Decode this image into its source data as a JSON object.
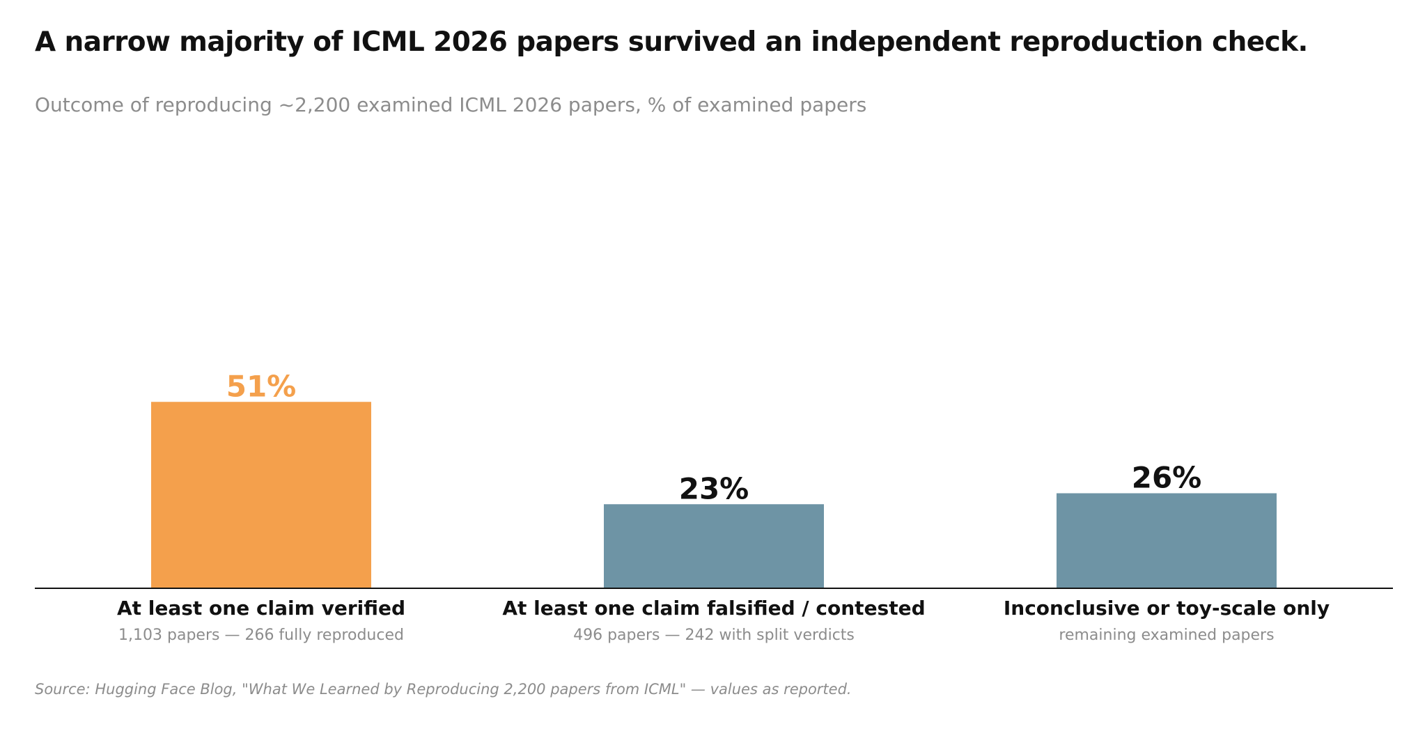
{
  "title": "A narrow majority of ICML 2026 papers survived an independent reproduction check.",
  "subtitle": "Outcome of reproducing ~2,200 examined ICML 2026 papers, % of examined papers",
  "source": "Source: Hugging Face Blog, \"What We Learned by Reproducing 2,200 papers from ICML\" — values as reported.",
  "colors": {
    "highlight": "#F4A04C",
    "default": "#6E94A5",
    "axis": "#111111",
    "label": "#111111",
    "muted": "#8c8c8c"
  },
  "chart_data": {
    "type": "bar",
    "categories": [
      "At least one claim verified",
      "At least one claim falsified / contested",
      "Inconclusive or toy-scale only"
    ],
    "sublabels": [
      "1,103 papers — 266 fully reproduced",
      "496 papers — 242 with split verdicts",
      "remaining examined papers"
    ],
    "values": [
      51,
      23,
      26
    ],
    "data_labels": [
      "51%",
      "23%",
      "26%"
    ],
    "highlight_index": 0,
    "ylim": [
      0,
      100
    ],
    "grid": false,
    "legend": "none"
  }
}
